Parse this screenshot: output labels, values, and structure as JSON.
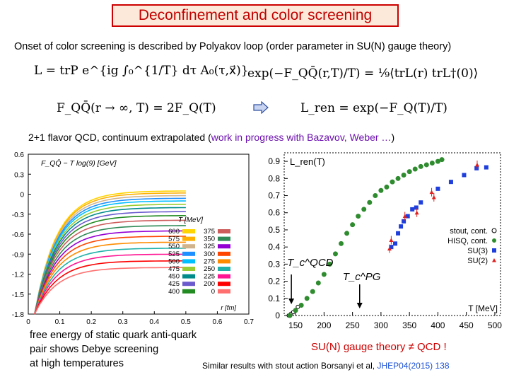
{
  "title": "Deconfinement and color screening",
  "subtitle": "Onset of color screening is described by Polyakov loop (order parameter in SU(N) gauge theory)",
  "formulas": {
    "loop_def": "L = trP e^{ig ∫₀^{1/T} dτ A₀(τ,x⃗)}",
    "corr_def": "exp(−F_QQ̄(r,T)/T) = ⅑⟨trL(r) trL†(0)⟩",
    "limit": "F_QQ̄(r → ∞, T) = 2F_Q(T)",
    "renorm": "L_ren = exp(−F_Q(T)/T)"
  },
  "line2": {
    "prefix": "2+1 flavor QCD, continuum extrapolated (",
    "highlight": "work in progress with Bazavov, Weber …",
    "suffix": ")"
  },
  "captions": {
    "left1": "free energy of static quark anti-quark",
    "left2": "pair shows Debye screening",
    "left3": "at high temperatures",
    "right_red": "SU(N) gauge theory ≠ QCD !",
    "similar_prefix": "Similar results with stout action  Borsanyi et al, ",
    "similar_ref": "JHEP04(2015) 138"
  },
  "chart_data": [
    {
      "type": "line",
      "title": "F_QQ̄ − T log(9) [GeV]",
      "xlabel": "r [fm]",
      "ylabel": "",
      "xlim": [
        0,
        0.7
      ],
      "ylim": [
        -1.8,
        0.6
      ],
      "x_ticks": [
        "0",
        "0.1",
        "0.2",
        "0.3",
        "0.4",
        "0.5",
        "0.6",
        "0.7"
      ],
      "y_ticks": [
        "0.6",
        "0.3",
        "0",
        "-0.3",
        "-0.6",
        "-0.9",
        "-1.2",
        "-1.5",
        "-1.8"
      ],
      "legend_title": "T [MeV]",
      "legend_position": "right",
      "series": [
        {
          "name": "600",
          "color": "#ffd400",
          "asymptote": 0.05
        },
        {
          "name": "575",
          "color": "#ffb000",
          "asymptote": 0.02
        },
        {
          "name": "550",
          "color": "#d2b48c",
          "asymptote": -0.02
        },
        {
          "name": "525",
          "color": "#1e90ff",
          "asymptote": -0.06
        },
        {
          "name": "500",
          "color": "#00bfff",
          "asymptote": -0.1
        },
        {
          "name": "475",
          "color": "#9acd32",
          "asymptote": -0.15
        },
        {
          "name": "450",
          "color": "#008b8b",
          "asymptote": -0.2
        },
        {
          "name": "425",
          "color": "#6a5acd",
          "asymptote": -0.26
        },
        {
          "name": "400",
          "color": "#228b22",
          "asymptote": -0.32
        },
        {
          "name": "375",
          "color": "#cd5c5c",
          "asymptote": -0.39
        },
        {
          "name": "350",
          "color": "#2e8b57",
          "asymptote": -0.47
        },
        {
          "name": "325",
          "color": "#9400d3",
          "asymptote": -0.55
        },
        {
          "name": "300",
          "color": "#ff4500",
          "asymptote": -0.63
        },
        {
          "name": "275",
          "color": "#ff8c00",
          "asymptote": -0.72
        },
        {
          "name": "250",
          "color": "#20b2aa",
          "asymptote": -0.81
        },
        {
          "name": "225",
          "color": "#ff1493",
          "asymptote": -0.9
        },
        {
          "name": "200",
          "color": "#ff0000",
          "asymptote": -1.0
        },
        {
          "name": "0",
          "color": "#ff6f6f",
          "asymptote": -1.1
        }
      ]
    },
    {
      "type": "scatter",
      "title": "L_ren(T)",
      "xlabel": "T [MeV]",
      "ylabel": "",
      "xlim": [
        130,
        510
      ],
      "ylim": [
        0,
        0.95
      ],
      "x_ticks": [
        150,
        200,
        250,
        300,
        350,
        400,
        450,
        500
      ],
      "y_ticks": [
        0,
        0.1,
        0.2,
        0.3,
        0.4,
        0.5,
        0.6,
        0.7,
        0.8,
        0.9
      ],
      "legend_position": "right",
      "annotations": {
        "tc_qcd": "T_c^QCD",
        "tc_pg": "T_c^PG",
        "tc_qcd_T": 155,
        "tc_pg_T": 270
      },
      "series": [
        {
          "name": "stout, cont.",
          "marker": "open-circle",
          "color": "#000000",
          "x": [
            138,
            142,
            146,
            150,
            154
          ],
          "y": [
            0.0,
            0.01,
            0.02,
            0.03,
            0.05
          ]
        },
        {
          "name": "HISQ, cont.",
          "marker": "dot",
          "color": "#2e8b2e",
          "x": [
            140,
            150,
            160,
            170,
            180,
            190,
            200,
            210,
            220,
            230,
            240,
            250,
            260,
            270,
            280,
            290,
            300,
            310,
            320,
            330,
            340,
            350,
            360,
            370,
            380,
            390,
            400,
            407
          ],
          "y": [
            0.0,
            0.03,
            0.06,
            0.1,
            0.14,
            0.19,
            0.24,
            0.3,
            0.36,
            0.42,
            0.48,
            0.53,
            0.58,
            0.62,
            0.66,
            0.7,
            0.73,
            0.75,
            0.78,
            0.8,
            0.82,
            0.84,
            0.855,
            0.87,
            0.88,
            0.89,
            0.9,
            0.91
          ]
        },
        {
          "name": "SU(3)",
          "marker": "square",
          "color": "#1f3fdc",
          "x": [
            318,
            325,
            330,
            335,
            340,
            347,
            355,
            362,
            370,
            400,
            423,
            446,
            468,
            485
          ],
          "y": [
            0.4,
            0.42,
            0.48,
            0.52,
            0.55,
            0.58,
            0.62,
            0.63,
            0.66,
            0.74,
            0.78,
            0.82,
            0.86,
            0.865
          ]
        },
        {
          "name": "SU(2)",
          "marker": "triangle",
          "color": "#e02020",
          "x": [
            315,
            318,
            342,
            363,
            389,
            393,
            469
          ],
          "y": [
            0.39,
            0.44,
            0.58,
            0.6,
            0.72,
            0.69,
            0.88
          ]
        }
      ]
    }
  ],
  "colors": {
    "title_border": "#cc0000",
    "title_fill": "#fde9d9",
    "title_text": "#c00000",
    "highlight": "#6a0dad",
    "accent_red": "#cc0000",
    "link_blue": "#1a4fd6"
  }
}
